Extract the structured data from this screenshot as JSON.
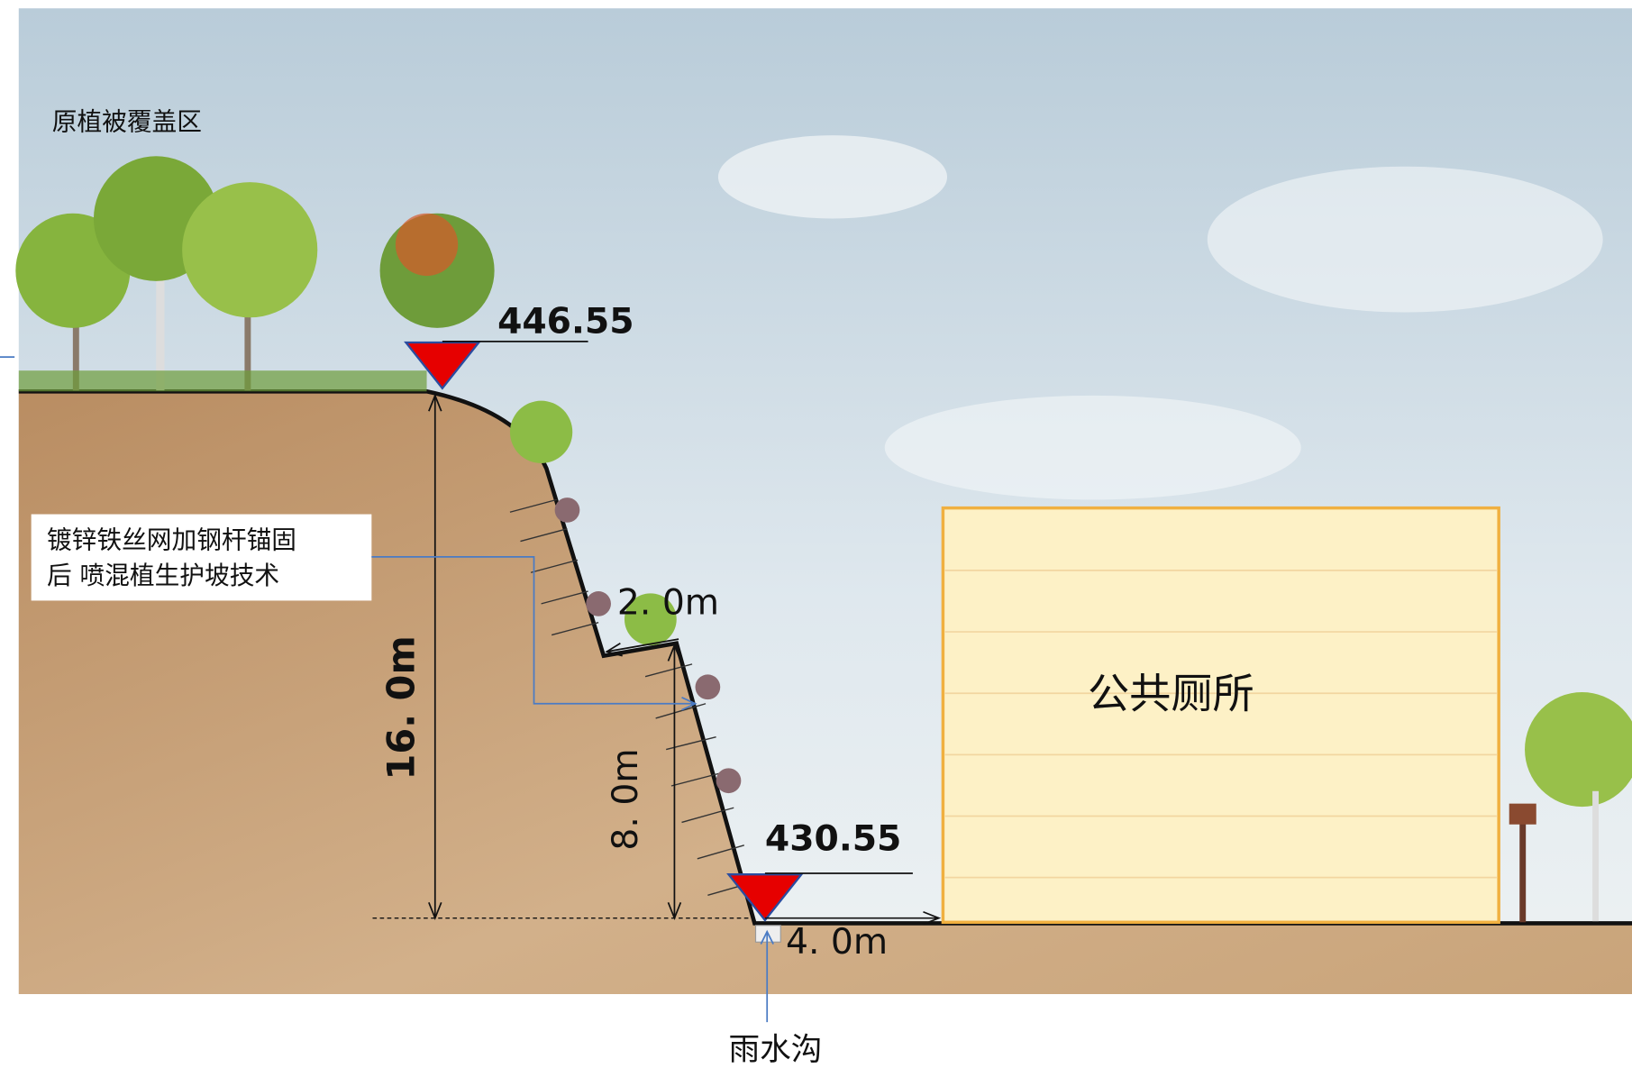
{
  "labels": {
    "vegetation_zone": "原植被覆盖区",
    "slope_technique": [
      "镀锌铁丝网加钢杆锚固",
      "后 喷混植生护坡技术"
    ],
    "building": "公共厕所",
    "drain": "雨水沟"
  },
  "elevations": [
    "446.55",
    "430.55"
  ],
  "dimensions": {
    "total_height": "16. 0m",
    "lower_height": "8. 0m",
    "berm_width": "2. 0m",
    "drain_offset": "4. 0m"
  }
}
